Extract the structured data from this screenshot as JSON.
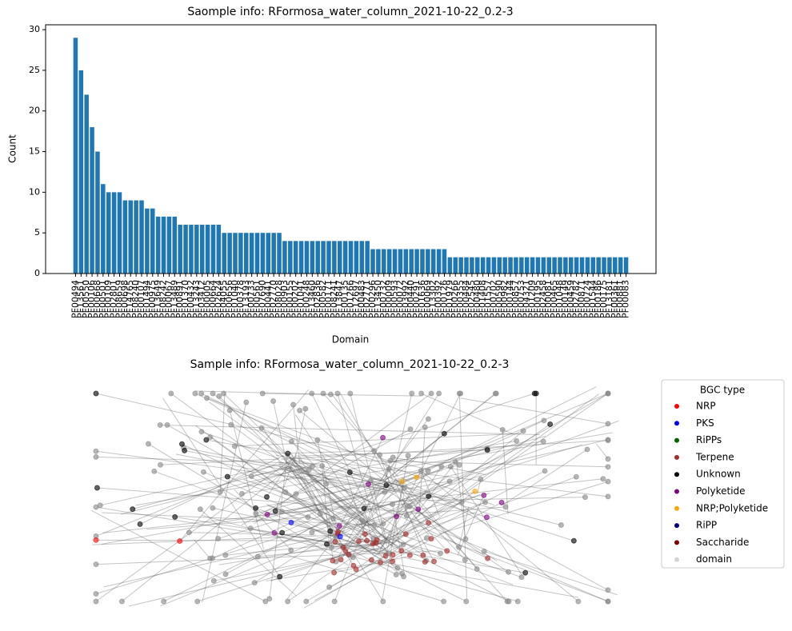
{
  "chart_data": [
    {
      "type": "bar",
      "title": "Saomple info: RFormosa_water_column_2021-10-22_0.2-3",
      "xlabel": "Domain",
      "ylabel": "Count",
      "color": "#1f77b4",
      "categories": [
        "PF00494",
        "PF13561",
        "PF00550",
        "PF00106",
        "PF00668",
        "PF00501",
        "PF00109",
        "PF02801",
        "PF08659",
        "PF00698",
        "PF14765",
        "PF08240",
        "PF00107",
        "PF01494",
        "PF00975",
        "PF13649",
        "PF08242",
        "PF00067",
        "PF13489",
        "PF00891",
        "PF01370",
        "PF00432",
        "PF13243",
        "PF03412",
        "PF00005",
        "PF00664",
        "PF02624",
        "PF04055",
        "PF00656",
        "PF01040",
        "PF00378",
        "PF13193",
        "PF00733",
        "PF00561",
        "PF07690",
        "PF00441",
        "PF02770",
        "PF08028",
        "PF00903",
        "PF00155",
        "PF00202",
        "PF01041",
        "PF00248",
        "PF13460",
        "PF02836",
        "PF00582",
        "PF00171",
        "PF08241",
        "PF13847",
        "PF00135",
        "PF01266",
        "PF12697",
        "PF00483",
        "PF02771",
        "PF00296",
        "PF13450",
        "PF00732",
        "PF00009",
        "PF00593",
        "PF00072",
        "PF03992",
        "PF00440",
        "PF00291",
        "PF01636",
        "PF00069",
        "PF13302",
        "PF00392",
        "PF00126",
        "PF01979",
        "PF00266",
        "PF00355",
        "PF00484",
        "PF02545",
        "PF00480",
        "PF01408",
        "PF01557",
        "PF00702",
        "PF00590",
        "PF00982",
        "PF00144",
        "PF00857",
        "PF00753",
        "PF04321",
        "PF01209",
        "PF00195",
        "PF02458",
        "PF00081",
        "PF00465",
        "PF01048",
        "PF00149",
        "PF00459",
        "PF02782",
        "PF00871",
        "PF00724",
        "PF01544",
        "PF00186",
        "PF00175",
        "PF13181",
        "PF00361",
        "PF00881",
        "PF00083"
      ],
      "values": [
        29,
        25,
        22,
        18,
        15,
        11,
        10,
        10,
        10,
        9,
        9,
        9,
        9,
        8,
        8,
        7,
        7,
        7,
        7,
        6,
        6,
        6,
        6,
        6,
        6,
        6,
        6,
        5,
        5,
        5,
        5,
        5,
        5,
        5,
        5,
        5,
        5,
        5,
        4,
        4,
        4,
        4,
        4,
        4,
        4,
        4,
        4,
        4,
        4,
        4,
        4,
        4,
        4,
        4,
        3,
        3,
        3,
        3,
        3,
        3,
        3,
        3,
        3,
        3,
        3,
        3,
        3,
        3,
        2,
        2,
        2,
        2,
        2,
        2,
        2,
        2,
        2,
        2,
        2,
        2,
        2,
        2,
        2,
        2,
        2,
        2,
        2,
        2,
        2,
        2,
        2,
        2,
        2,
        2,
        2,
        2,
        2,
        2,
        2,
        2,
        2
      ],
      "ylim": [
        0,
        30.6
      ],
      "yticks": [
        0,
        5,
        10,
        15,
        20,
        25,
        30
      ]
    },
    {
      "type": "network",
      "title": "Sample info: RFormosa_water_column_2021-10-22_0.2-3",
      "legend_title": "BGC type",
      "series": [
        {
          "name": "NRP",
          "color": "#ff0000"
        },
        {
          "name": "PKS",
          "color": "#0000ff"
        },
        {
          "name": "RiPPs",
          "color": "#006400"
        },
        {
          "name": "Terpene",
          "color": "#a52a2a"
        },
        {
          "name": "Unknown",
          "color": "#000000"
        },
        {
          "name": "Polyketide",
          "color": "#800080"
        },
        {
          "name": "NRP;Polyketide",
          "color": "#ffa500"
        },
        {
          "name": "RiPP",
          "color": "#000080"
        },
        {
          "name": "Saccharide",
          "color": "#800000"
        },
        {
          "name": "domain",
          "color": "#d3d3d3"
        }
      ]
    }
  ]
}
